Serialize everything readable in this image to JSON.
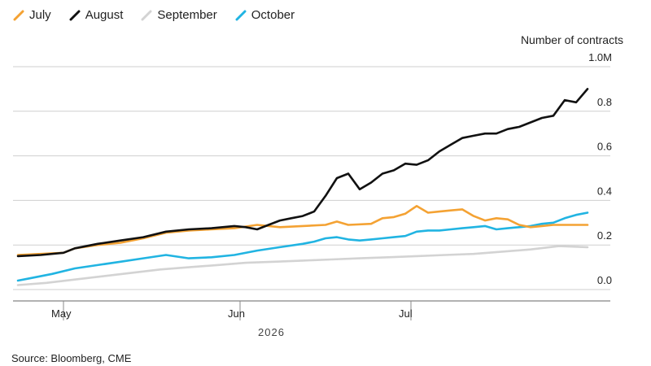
{
  "legend": [
    {
      "name": "July",
      "color": "#f4a233"
    },
    {
      "name": "August",
      "color": "#111111"
    },
    {
      "name": "September",
      "color": "#d3d3d3"
    },
    {
      "name": "October",
      "color": "#21b4e2"
    }
  ],
  "ylabel": "Number of contracts",
  "source": "Source: Bloomberg, CME",
  "chart_data": {
    "type": "line",
    "ylabel": "Number of contracts",
    "ylim": [
      0,
      1.0
    ],
    "y_ticks": [
      {
        "value": 0.0,
        "label": "0.0"
      },
      {
        "value": 0.2,
        "label": "0.2"
      },
      {
        "value": 0.4,
        "label": "0.4"
      },
      {
        "value": 0.6,
        "label": "0.6"
      },
      {
        "value": 0.8,
        "label": "0.8"
      },
      {
        "value": 1.0,
        "label": "1.0M"
      }
    ],
    "x_ticks": [
      {
        "day": 8,
        "label": "May"
      },
      {
        "day": 39,
        "label": "Jun"
      },
      {
        "day": 69,
        "label": "Jul"
      }
    ],
    "xlim": [
      0,
      100
    ],
    "year_label": "2026",
    "grid": true,
    "legend_position": "top-left",
    "series": [
      {
        "name": "July",
        "color": "#f4a233",
        "x": [
          0,
          4,
          8,
          10,
          14,
          18,
          22,
          26,
          30,
          34,
          38,
          42,
          46,
          50,
          54,
          56,
          58,
          62,
          64,
          66,
          68,
          70,
          72,
          74,
          76,
          78,
          80,
          82,
          84,
          86,
          88,
          90,
          92,
          94,
          96,
          98,
          100
        ],
        "y": [
          0.155,
          0.16,
          0.165,
          0.185,
          0.2,
          0.21,
          0.23,
          0.255,
          0.265,
          0.27,
          0.275,
          0.29,
          0.28,
          0.285,
          0.29,
          0.305,
          0.29,
          0.295,
          0.32,
          0.325,
          0.34,
          0.375,
          0.345,
          0.35,
          0.355,
          0.36,
          0.33,
          0.31,
          0.32,
          0.315,
          0.29,
          0.28,
          0.285,
          0.29,
          0.29,
          0.29,
          0.29
        ]
      },
      {
        "name": "August",
        "color": "#111111",
        "x": [
          0,
          4,
          8,
          10,
          14,
          18,
          22,
          26,
          30,
          34,
          38,
          40,
          42,
          44,
          46,
          48,
          50,
          52,
          54,
          56,
          58,
          60,
          62,
          64,
          66,
          68,
          70,
          72,
          74,
          76,
          78,
          80,
          82,
          84,
          86,
          88,
          90,
          92,
          94,
          96,
          98,
          100
        ],
        "y": [
          0.15,
          0.155,
          0.165,
          0.185,
          0.205,
          0.22,
          0.235,
          0.26,
          0.27,
          0.275,
          0.285,
          0.28,
          0.27,
          0.29,
          0.31,
          0.32,
          0.33,
          0.35,
          0.42,
          0.5,
          0.52,
          0.45,
          0.48,
          0.52,
          0.535,
          0.565,
          0.56,
          0.58,
          0.62,
          0.65,
          0.68,
          0.69,
          0.7,
          0.7,
          0.72,
          0.73,
          0.75,
          0.77,
          0.78,
          0.85,
          0.84,
          0.9
        ]
      },
      {
        "name": "September",
        "color": "#d3d3d3",
        "x": [
          0,
          5,
          10,
          15,
          20,
          25,
          30,
          35,
          40,
          45,
          50,
          55,
          60,
          65,
          70,
          75,
          80,
          85,
          90,
          95,
          100
        ],
        "y": [
          0.02,
          0.03,
          0.045,
          0.06,
          0.075,
          0.09,
          0.1,
          0.11,
          0.12,
          0.125,
          0.13,
          0.135,
          0.14,
          0.145,
          0.15,
          0.155,
          0.16,
          0.17,
          0.18,
          0.195,
          0.19
        ]
      },
      {
        "name": "October",
        "color": "#21b4e2",
        "x": [
          0,
          2,
          6,
          10,
          14,
          18,
          22,
          26,
          30,
          34,
          38,
          42,
          46,
          50,
          52,
          54,
          56,
          58,
          60,
          62,
          64,
          66,
          68,
          70,
          72,
          74,
          76,
          78,
          80,
          82,
          84,
          86,
          88,
          90,
          92,
          94,
          96,
          98,
          100
        ],
        "y": [
          0.04,
          0.05,
          0.07,
          0.095,
          0.11,
          0.125,
          0.14,
          0.155,
          0.14,
          0.145,
          0.155,
          0.175,
          0.19,
          0.205,
          0.215,
          0.23,
          0.235,
          0.225,
          0.22,
          0.225,
          0.23,
          0.235,
          0.24,
          0.26,
          0.265,
          0.265,
          0.27,
          0.275,
          0.28,
          0.285,
          0.27,
          0.275,
          0.28,
          0.285,
          0.295,
          0.3,
          0.32,
          0.335,
          0.345
        ]
      }
    ]
  }
}
